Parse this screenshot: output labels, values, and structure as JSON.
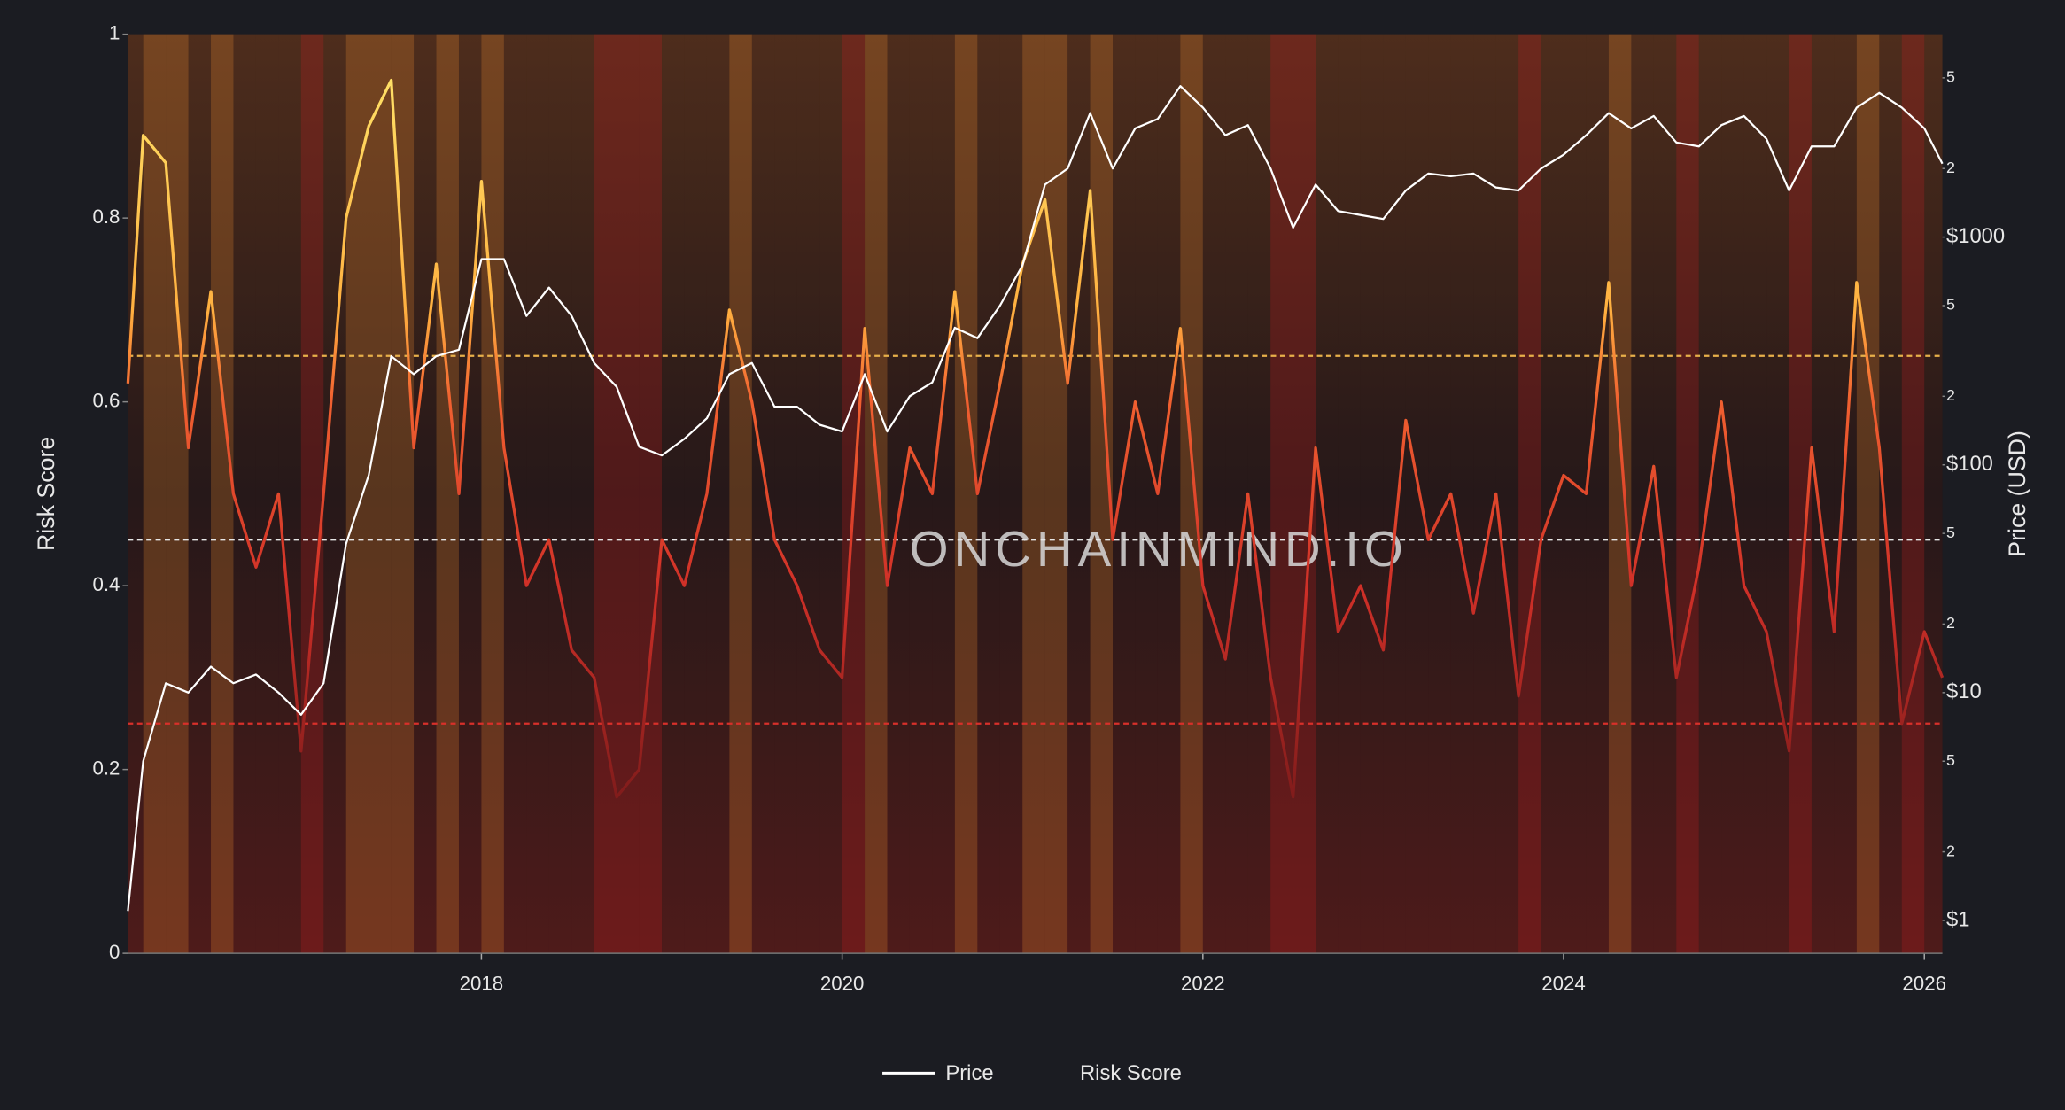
{
  "chart_data": {
    "type": "line",
    "x": [
      2016.04,
      2016.125,
      2016.25,
      2016.375,
      2016.5,
      2016.625,
      2016.75,
      2016.875,
      2017.0,
      2017.125,
      2017.25,
      2017.375,
      2017.5,
      2017.625,
      2017.75,
      2017.875,
      2018.0,
      2018.125,
      2018.25,
      2018.375,
      2018.5,
      2018.625,
      2018.75,
      2018.875,
      2019.0,
      2019.125,
      2019.25,
      2019.375,
      2019.5,
      2019.625,
      2019.75,
      2019.875,
      2020.0,
      2020.125,
      2020.25,
      2020.375,
      2020.5,
      2020.625,
      2020.75,
      2020.875,
      2021.0,
      2021.125,
      2021.25,
      2021.375,
      2021.5,
      2021.625,
      2021.75,
      2021.875,
      2022.0,
      2022.125,
      2022.25,
      2022.375,
      2022.5,
      2022.625,
      2022.75,
      2022.875,
      2023.0,
      2023.125,
      2023.25,
      2023.375,
      2023.5,
      2023.625,
      2023.75,
      2023.875,
      2024.0,
      2024.125,
      2024.25,
      2024.375,
      2024.5,
      2024.625,
      2024.75,
      2024.875,
      2025.0,
      2025.125,
      2025.25,
      2025.375,
      2025.5,
      2025.625,
      2025.75,
      2025.875,
      2026.0,
      2026.1
    ],
    "series": [
      {
        "name": "Price",
        "color": "#ffffff",
        "axis": "y2",
        "values": [
          1.1,
          5,
          11,
          10,
          13,
          11,
          12,
          10,
          8,
          11,
          45,
          90,
          300,
          250,
          300,
          320,
          800,
          800,
          450,
          600,
          450,
          280,
          220,
          120,
          110,
          130,
          160,
          250,
          280,
          180,
          180,
          150,
          140,
          250,
          140,
          200,
          230,
          400,
          360,
          500,
          750,
          1700,
          2000,
          3500,
          2000,
          3000,
          3300,
          4600,
          3700,
          2800,
          3100,
          2000,
          1100,
          1700,
          1300,
          1250,
          1200,
          1600,
          1900,
          1850,
          1900,
          1650,
          1600,
          2000,
          2300,
          2800,
          3500,
          3000,
          3400,
          2600,
          2500,
          3100,
          3400,
          2700,
          1600,
          2500,
          2500,
          3700,
          4300,
          3700,
          3000,
          2100
        ]
      },
      {
        "name": "Risk Score",
        "values": [
          0.62,
          0.89,
          0.86,
          0.55,
          0.72,
          0.5,
          0.42,
          0.5,
          0.22,
          0.5,
          0.8,
          0.9,
          0.95,
          0.55,
          0.75,
          0.5,
          0.84,
          0.55,
          0.4,
          0.45,
          0.33,
          0.3,
          0.17,
          0.2,
          0.45,
          0.4,
          0.5,
          0.7,
          0.6,
          0.45,
          0.4,
          0.33,
          0.3,
          0.68,
          0.4,
          0.55,
          0.5,
          0.72,
          0.5,
          0.62,
          0.75,
          0.82,
          0.62,
          0.83,
          0.45,
          0.6,
          0.5,
          0.68,
          0.4,
          0.32,
          0.5,
          0.3,
          0.17,
          0.55,
          0.35,
          0.4,
          0.33,
          0.58,
          0.45,
          0.5,
          0.37,
          0.5,
          0.28,
          0.45,
          0.52,
          0.5,
          0.73,
          0.4,
          0.53,
          0.3,
          0.42,
          0.6,
          0.4,
          0.35,
          0.22,
          0.55,
          0.35,
          0.73,
          0.55,
          0.25,
          0.35,
          0.3
        ]
      }
    ],
    "xlim": [
      2016.04,
      2026.1
    ],
    "xticks": [
      2018,
      2020,
      2022,
      2024,
      2026
    ],
    "ylim": [
      0,
      1
    ],
    "yticks": [
      0,
      0.2,
      0.4,
      0.6,
      0.8,
      1
    ],
    "ylabel": "Risk Score",
    "y2lim": [
      0.717,
      7770
    ],
    "y2log": true,
    "y2label": "Price (USD)",
    "y2ticks": [
      {
        "value": 1,
        "label": "$1"
      },
      2,
      5,
      {
        "value": 10,
        "label": "$10"
      },
      {
        "value": 20,
        "label": "2"
      },
      {
        "value": 50,
        "label": "5"
      },
      {
        "value": 100,
        "label": "$100"
      },
      {
        "value": 200,
        "label": "2"
      },
      {
        "value": 500,
        "label": "5"
      },
      {
        "value": 1000,
        "label": "$1000"
      },
      {
        "value": 2000,
        "label": "2"
      },
      {
        "value": 5000,
        "label": "5"
      }
    ],
    "thresholds": [
      {
        "value": 0.65,
        "color": "#e8b04a"
      },
      {
        "value": 0.45,
        "color": "#e6e6e6"
      },
      {
        "value": 0.25,
        "color": "#d8302a"
      }
    ],
    "watermark": "ONCHAINMIND.IO"
  }
}
